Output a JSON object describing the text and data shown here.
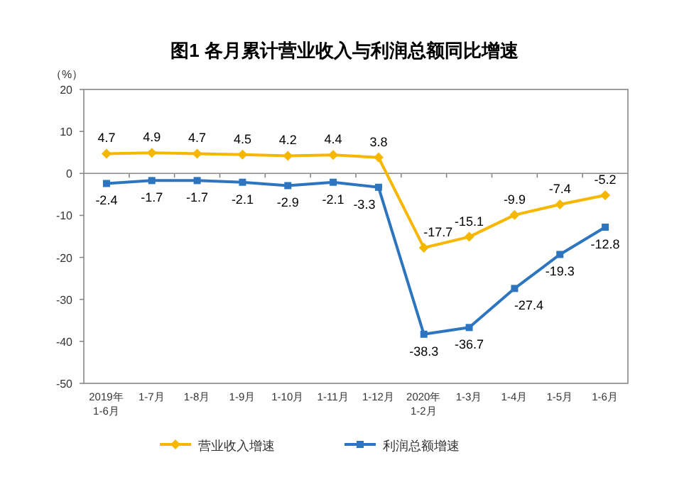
{
  "chart_data": {
    "type": "line",
    "title": "图1  各月累计营业收入与利润总额同比增速",
    "ylabel": "（%）",
    "categories": [
      "2019年 1-6月",
      "1-7月",
      "1-8月",
      "1-9月",
      "1-10月",
      "1-11月",
      "1-12月",
      "2020年 1-2月",
      "1-3月",
      "1-4月",
      "1-5月",
      "1-6月"
    ],
    "series": [
      {
        "name": "营业收入增速",
        "color": "#f5b700",
        "marker": "diamond",
        "values": [
          4.7,
          4.9,
          4.7,
          4.5,
          4.2,
          4.4,
          3.8,
          -17.7,
          -15.1,
          -9.9,
          -7.4,
          -5.2
        ]
      },
      {
        "name": "利润总额增速",
        "color": "#2e75c0",
        "marker": "square",
        "values": [
          -2.4,
          -1.7,
          -1.7,
          -2.1,
          -2.9,
          -2.1,
          -3.3,
          -38.3,
          -36.7,
          -27.4,
          -19.3,
          -12.8
        ]
      }
    ],
    "ylim": [
      -50,
      20
    ],
    "yticks": [
      -50,
      -40,
      -30,
      -20,
      -10,
      0,
      10,
      20
    ],
    "data_labels": true,
    "legend": "bottom"
  }
}
